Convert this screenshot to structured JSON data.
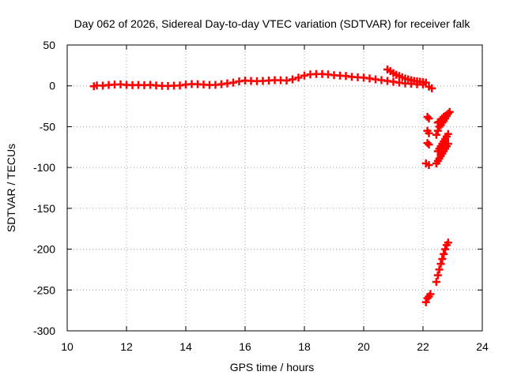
{
  "chart_data": {
    "type": "scatter",
    "title": "Day 062 of 2026, Sidereal Day-to-day VTEC variation (SDTVAR) for receiver falk",
    "xlabel": "GPS time / hours",
    "ylabel": "SDTVAR / TECUs",
    "xlim": [
      10,
      24
    ],
    "ylim": [
      -300,
      50
    ],
    "xticks": [
      "10",
      "12",
      "14",
      "16",
      "18",
      "20",
      "22",
      "24"
    ],
    "yticks": [
      "50",
      "0",
      "-50",
      "-100",
      "-150",
      "-200",
      "-250",
      "-300"
    ],
    "grid": true,
    "marker": "plus",
    "color": "#ff0000",
    "series": [
      {
        "points": [
          [
            10.9,
            -0.5
          ],
          [
            11.0,
            0.5
          ],
          [
            11.2,
            0.2
          ],
          [
            11.4,
            1.0
          ],
          [
            11.6,
            1.5
          ],
          [
            11.8,
            1.8
          ],
          [
            12.0,
            1.2
          ],
          [
            12.2,
            0.8
          ],
          [
            12.4,
            1.0
          ],
          [
            12.6,
            0.8
          ],
          [
            12.8,
            1.2
          ],
          [
            13.0,
            0.5
          ],
          [
            13.2,
            0.0
          ],
          [
            13.4,
            -0.2
          ],
          [
            13.6,
            0.2
          ],
          [
            13.8,
            0.5
          ],
          [
            14.0,
            1.5
          ],
          [
            14.2,
            2.2
          ],
          [
            14.4,
            2.0
          ],
          [
            14.6,
            1.5
          ],
          [
            14.8,
            1.0
          ],
          [
            15.0,
            1.2
          ],
          [
            15.2,
            2.0
          ],
          [
            15.4,
            3.0
          ],
          [
            15.6,
            4.0
          ],
          [
            15.8,
            5.5
          ],
          [
            16.0,
            6.5
          ],
          [
            16.2,
            6.0
          ],
          [
            16.4,
            5.8
          ],
          [
            16.6,
            6.0
          ],
          [
            16.8,
            6.5
          ],
          [
            17.0,
            7.0
          ],
          [
            17.2,
            6.8
          ],
          [
            17.4,
            6.5
          ],
          [
            17.6,
            8.0
          ],
          [
            17.8,
            10.0
          ],
          [
            18.0,
            12.5
          ],
          [
            18.2,
            14.0
          ],
          [
            18.4,
            14.5
          ],
          [
            18.6,
            14.5
          ],
          [
            18.8,
            14.0
          ],
          [
            19.0,
            13.0
          ],
          [
            19.2,
            12.5
          ],
          [
            19.4,
            12.0
          ],
          [
            19.6,
            11.0
          ],
          [
            19.8,
            10.5
          ],
          [
            20.0,
            10.0
          ],
          [
            20.2,
            9.0
          ],
          [
            20.4,
            8.0
          ],
          [
            20.6,
            7.0
          ],
          [
            20.8,
            6.0
          ],
          [
            21.0,
            5.0
          ],
          [
            21.2,
            4.0
          ],
          [
            21.4,
            3.0
          ],
          [
            21.6,
            2.5
          ],
          [
            21.8,
            2.0
          ],
          [
            22.0,
            1.5
          ],
          [
            22.2,
            -1.0
          ],
          [
            22.3,
            -3.0
          ],
          [
            20.8,
            20.0
          ],
          [
            20.9,
            18.0
          ],
          [
            21.0,
            15.5
          ],
          [
            21.1,
            13.5
          ],
          [
            21.2,
            12.0
          ],
          [
            21.3,
            10.5
          ],
          [
            21.4,
            9.0
          ],
          [
            21.5,
            8.0
          ],
          [
            21.6,
            7.0
          ],
          [
            21.7,
            6.0
          ],
          [
            21.8,
            5.5
          ],
          [
            21.9,
            5.0
          ],
          [
            22.0,
            4.5
          ],
          [
            22.1,
            4.0
          ],
          [
            22.15,
            -38
          ],
          [
            22.2,
            -40
          ],
          [
            22.15,
            -55
          ],
          [
            22.2,
            -58
          ],
          [
            22.15,
            -70
          ],
          [
            22.2,
            -72
          ],
          [
            22.1,
            -95
          ],
          [
            22.2,
            -97
          ],
          [
            22.45,
            -60
          ],
          [
            22.5,
            -55
          ],
          [
            22.55,
            -50
          ],
          [
            22.6,
            -48
          ],
          [
            22.65,
            -45
          ],
          [
            22.7,
            -43
          ],
          [
            22.75,
            -40
          ],
          [
            22.8,
            -37
          ],
          [
            22.85,
            -34
          ],
          [
            22.9,
            -32
          ],
          [
            22.5,
            -45
          ],
          [
            22.55,
            -44
          ],
          [
            22.6,
            -42
          ],
          [
            22.65,
            -40
          ],
          [
            22.7,
            -38
          ],
          [
            22.75,
            -37
          ],
          [
            22.8,
            -36
          ],
          [
            22.5,
            -80
          ],
          [
            22.55,
            -77
          ],
          [
            22.6,
            -74
          ],
          [
            22.65,
            -71
          ],
          [
            22.7,
            -68
          ],
          [
            22.75,
            -65
          ],
          [
            22.8,
            -62
          ],
          [
            22.85,
            -59
          ],
          [
            22.45,
            -95
          ],
          [
            22.5,
            -92
          ],
          [
            22.55,
            -89
          ],
          [
            22.6,
            -86
          ],
          [
            22.65,
            -83
          ],
          [
            22.7,
            -80
          ],
          [
            22.75,
            -77
          ],
          [
            22.8,
            -74
          ],
          [
            22.85,
            -71
          ],
          [
            22.1,
            -265
          ],
          [
            22.15,
            -260
          ],
          [
            22.2,
            -258
          ],
          [
            22.25,
            -255
          ],
          [
            22.45,
            -240
          ],
          [
            22.5,
            -232
          ],
          [
            22.55,
            -225
          ],
          [
            22.6,
            -218
          ],
          [
            22.65,
            -212
          ],
          [
            22.7,
            -206
          ],
          [
            22.75,
            -200
          ],
          [
            22.8,
            -195
          ],
          [
            22.85,
            -192
          ]
        ]
      }
    ]
  }
}
